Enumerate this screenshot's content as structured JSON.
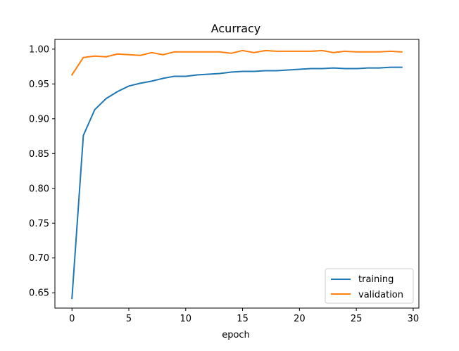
{
  "chart_data": {
    "type": "line",
    "title": "Acurracy",
    "xlabel": "epoch",
    "ylabel": "",
    "xlim": [
      -1.5,
      30.5
    ],
    "ylim": [
      0.628,
      1.014
    ],
    "xticks": [
      0,
      5,
      10,
      15,
      20,
      25,
      30
    ],
    "yticks": [
      0.65,
      0.7,
      0.75,
      0.8,
      0.85,
      0.9,
      0.95,
      1.0
    ],
    "ytick_labels": [
      "0.65",
      "0.70",
      "0.75",
      "0.80",
      "0.85",
      "0.90",
      "0.95",
      "1.00"
    ],
    "grid": false,
    "legend_position": "lower-right",
    "x": [
      0,
      1,
      2,
      3,
      4,
      5,
      6,
      7,
      8,
      9,
      10,
      11,
      12,
      13,
      14,
      15,
      16,
      17,
      18,
      19,
      20,
      21,
      22,
      23,
      24,
      25,
      26,
      27,
      28,
      29
    ],
    "series": [
      {
        "name": "training",
        "color": "#1f77b4",
        "values": [
          0.642,
          0.876,
          0.913,
          0.929,
          0.939,
          0.947,
          0.951,
          0.954,
          0.958,
          0.961,
          0.961,
          0.963,
          0.964,
          0.965,
          0.967,
          0.968,
          0.968,
          0.969,
          0.969,
          0.97,
          0.971,
          0.972,
          0.972,
          0.973,
          0.972,
          0.972,
          0.973,
          0.973,
          0.974,
          0.974
        ]
      },
      {
        "name": "validation",
        "color": "#ff7f0e",
        "values": [
          0.963,
          0.988,
          0.99,
          0.989,
          0.993,
          0.992,
          0.991,
          0.995,
          0.992,
          0.996,
          0.996,
          0.996,
          0.996,
          0.996,
          0.994,
          0.998,
          0.995,
          0.998,
          0.997,
          0.997,
          0.997,
          0.997,
          0.998,
          0.995,
          0.997,
          0.996,
          0.996,
          0.996,
          0.997,
          0.996
        ]
      }
    ]
  }
}
